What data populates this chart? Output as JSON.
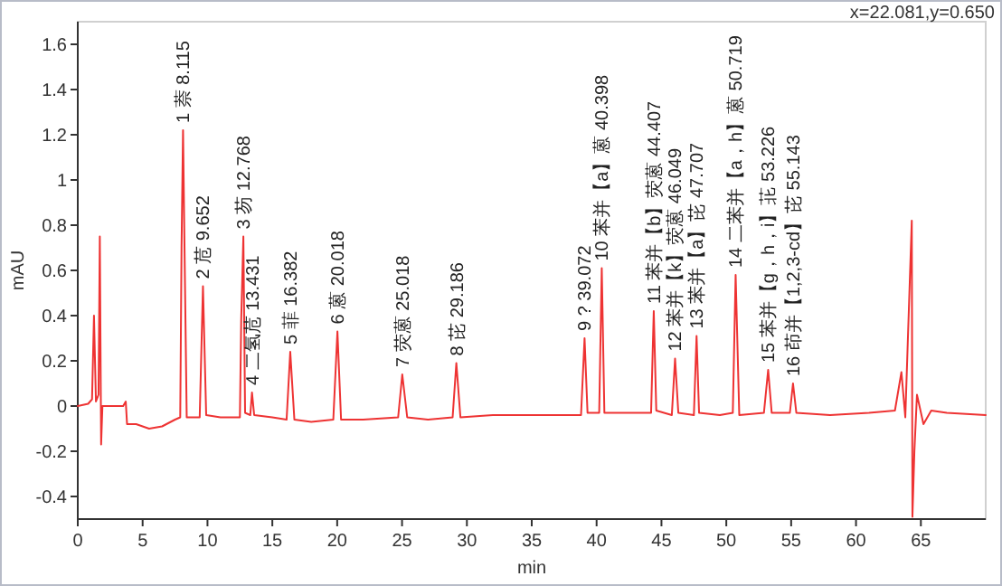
{
  "chart_data": {
    "type": "line",
    "xlabel": "min",
    "ylabel": "mAU",
    "xlim": [
      0,
      70
    ],
    "ylim": [
      -0.5,
      1.7
    ],
    "xticks": [
      0,
      5,
      10,
      15,
      20,
      25,
      30,
      35,
      40,
      45,
      50,
      55,
      60,
      65
    ],
    "yticks": [
      -0.4,
      -0.2,
      0,
      0.2,
      0.4,
      0.6,
      0.8,
      1,
      1.2,
      1.4,
      1.6
    ],
    "grid": false,
    "marker": "none",
    "line_style": "solid",
    "series": [
      {
        "color": "#ee3333",
        "x": [
          0,
          0.8,
          1.1,
          1.25,
          1.4,
          1.6,
          1.7,
          1.8,
          1.9,
          2.5,
          3.5,
          3.7,
          3.8,
          4.5,
          5.5,
          6.5,
          7.5,
          7.9,
          8.0,
          8.115,
          8.2,
          8.4,
          9.4,
          9.652,
          9.9,
          11,
          12.5,
          12.6,
          12.768,
          12.9,
          13.3,
          13.431,
          13.6,
          15,
          16.1,
          16.382,
          16.7,
          18,
          19.7,
          20.018,
          20.3,
          22,
          24.7,
          25.018,
          25.4,
          27,
          28.9,
          29.186,
          29.5,
          32,
          35,
          38.8,
          39.072,
          39.3,
          40.2,
          40.398,
          40.6,
          42,
          44.2,
          44.407,
          44.6,
          45.8,
          46.049,
          46.3,
          47.5,
          47.707,
          47.9,
          49.5,
          50.5,
          50.719,
          51.0,
          52.9,
          53.226,
          53.5,
          54.9,
          55.143,
          55.4,
          58,
          61,
          63.0,
          63.5,
          63.8,
          64.3,
          64.35,
          64.5,
          64.7,
          65.2,
          65.8,
          67,
          70
        ],
        "values": [
          0,
          0.01,
          0.03,
          0.4,
          0.02,
          0.05,
          0.75,
          -0.17,
          0,
          0,
          0,
          0.02,
          -0.08,
          -0.08,
          -0.1,
          -0.09,
          -0.06,
          -0.05,
          0.7,
          1.22,
          0.83,
          -0.05,
          -0.05,
          0.53,
          -0.04,
          -0.05,
          -0.05,
          0.38,
          0.75,
          -0.03,
          -0.04,
          0.06,
          -0.04,
          -0.05,
          -0.06,
          0.24,
          -0.06,
          -0.07,
          -0.06,
          0.33,
          -0.06,
          -0.06,
          -0.05,
          0.14,
          -0.05,
          -0.06,
          -0.05,
          0.19,
          -0.05,
          -0.04,
          -0.04,
          -0.04,
          0.3,
          -0.03,
          -0.03,
          0.61,
          -0.03,
          -0.03,
          -0.03,
          0.42,
          -0.02,
          -0.04,
          0.21,
          -0.03,
          -0.04,
          0.31,
          -0.03,
          -0.04,
          -0.03,
          0.58,
          -0.04,
          -0.03,
          0.16,
          -0.03,
          -0.03,
          0.1,
          -0.03,
          -0.04,
          -0.03,
          -0.02,
          0.15,
          -0.05,
          0.82,
          -0.49,
          -0.2,
          0.05,
          -0.08,
          -0.02,
          -0.03,
          -0.04
        ]
      }
    ],
    "annotations": [
      "x=22.081,y=0.650",
      {
        "text": "1 萘 8.115",
        "x": 8.115,
        "y": 1.22
      },
      {
        "text": "2 苊 9.652",
        "x": 9.652,
        "y": 0.53
      },
      {
        "text": "3 芴 12.768",
        "x": 12.768,
        "y": 0.75
      },
      {
        "text": "4 二氢苊 13.431",
        "x": 13.431,
        "y": 0.06
      },
      {
        "text": "5 菲 16.382",
        "x": 16.382,
        "y": 0.24
      },
      {
        "text": "6 蒽 20.018",
        "x": 20.018,
        "y": 0.33
      },
      {
        "text": "7 荧蒽 25.018",
        "x": 25.018,
        "y": 0.14
      },
      {
        "text": "8 芘 29.186",
        "x": 29.186,
        "y": 0.19
      },
      {
        "text": "9 ? 39.072",
        "x": 39.072,
        "y": 0.3
      },
      {
        "text": "10 苯并【a】蒽 40.398",
        "x": 40.398,
        "y": 0.61
      },
      {
        "text": "11 苯并【b】荧蒽 44.407",
        "x": 44.407,
        "y": 0.42
      },
      {
        "text": "12 苯并【k】荧蒽 46.049",
        "x": 46.049,
        "y": 0.21
      },
      {
        "text": "13 苯并【a】芘 47.707",
        "x": 47.707,
        "y": 0.31
      },
      {
        "text": "14 二苯并【a，h】蒽 50.719",
        "x": 50.719,
        "y": 0.58
      },
      {
        "text": "15 苯并【g，h，i】苝 53.226",
        "x": 53.226,
        "y": 0.16
      },
      {
        "text": "16 茚并【1,2,3-cd】芘 55.143",
        "x": 55.143,
        "y": 0.1
      }
    ]
  }
}
